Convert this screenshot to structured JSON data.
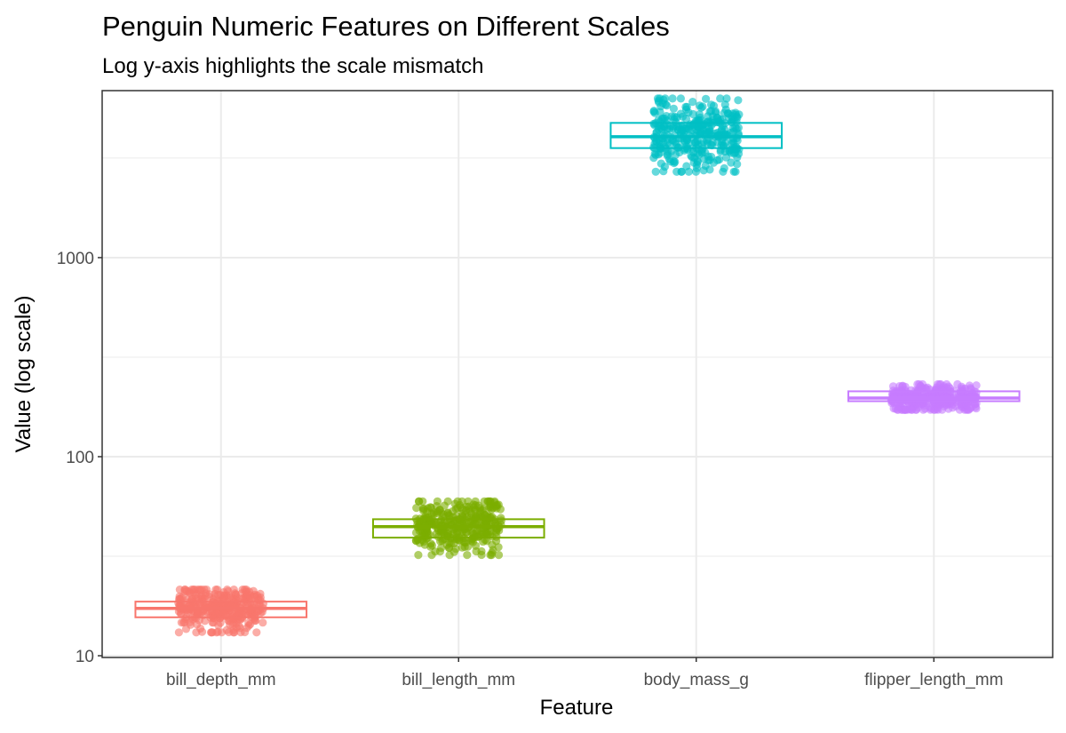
{
  "chart_data": {
    "type": "box",
    "title": "Penguin Numeric Features on Different Scales",
    "subtitle": "Log y-axis highlights the scale mismatch",
    "xlabel": "Feature",
    "ylabel": "Value (log scale)",
    "y_scale": "log10",
    "ylim": [
      9.8,
      6900
    ],
    "yticks": [
      10,
      100,
      1000
    ],
    "y_tick_labels": [
      "10",
      "100",
      "1000"
    ],
    "grid": true,
    "legend": "none",
    "categories": [
      "bill_depth_mm",
      "bill_length_mm",
      "body_mass_g",
      "flipper_length_mm"
    ],
    "series": [
      {
        "category": "bill_depth_mm",
        "color": "#F8766D",
        "min": 13.1,
        "q1": 15.6,
        "median": 17.3,
        "q3": 18.7,
        "max": 21.5
      },
      {
        "category": "bill_length_mm",
        "color": "#7CAE00",
        "min": 32.1,
        "q1": 39.2,
        "median": 44.5,
        "q3": 48.5,
        "max": 59.6
      },
      {
        "category": "body_mass_g",
        "color": "#00BFC4",
        "min": 2700,
        "q1": 3550,
        "median": 4050,
        "q3": 4750,
        "max": 6300
      },
      {
        "category": "flipper_length_mm",
        "color": "#C77CFF",
        "min": 172,
        "q1": 190,
        "median": 197,
        "q3": 213,
        "max": 231
      }
    ]
  }
}
